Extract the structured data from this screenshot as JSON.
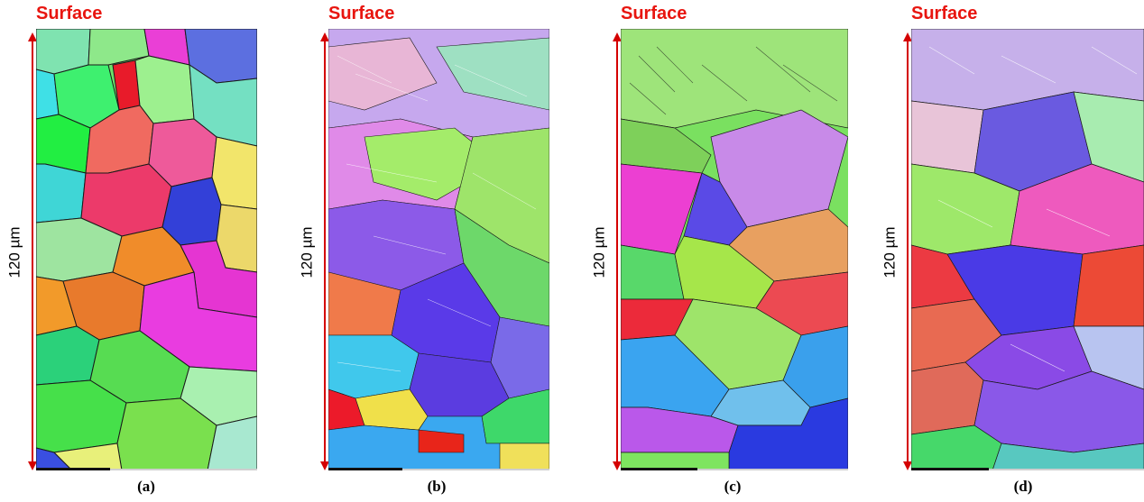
{
  "colors": {
    "accent_red": "#e8150f",
    "arrow": "#d40000",
    "grain_boundary": "#1a1a1a"
  },
  "panels": [
    {
      "surface_label": "Surface",
      "scale_label": "120 µm",
      "caption": "(a)"
    },
    {
      "surface_label": "Surface",
      "scale_label": "120 µm",
      "caption": "(b)"
    },
    {
      "surface_label": "Surface",
      "scale_label": "120 µm",
      "caption": "(c)"
    },
    {
      "surface_label": "Surface",
      "scale_label": "120 µm",
      "caption": "(d)"
    }
  ]
}
